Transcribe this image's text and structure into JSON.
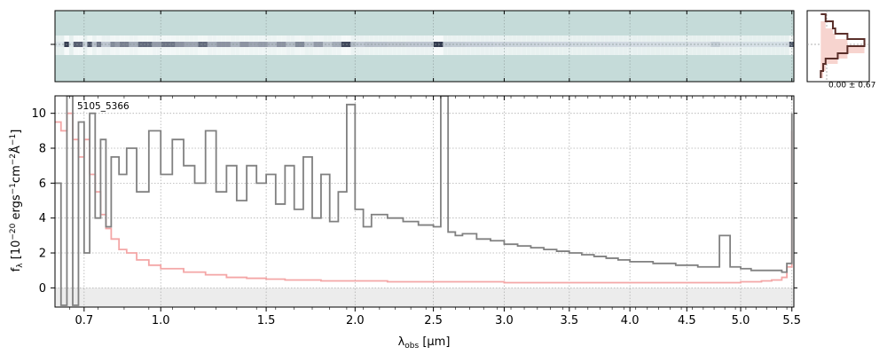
{
  "chart_data": {
    "type": "line",
    "object_label": "5105_5366",
    "ylabel": "f_λ [10^-20 ergs^-1 cm^-2 Å^-1]",
    "xlabel": "λ_obs [μm]",
    "xlim": [
      0.6,
      5.52
    ],
    "ylim": [
      -1.1,
      11.0
    ],
    "x_scale": "power-0.5",
    "x_ticks": [
      0.7,
      1.0,
      1.5,
      2.0,
      2.5,
      3.0,
      3.5,
      4.0,
      4.5,
      5.0,
      5.5
    ],
    "x_tick_labels": [
      "0.7",
      "1.0",
      "1.5",
      "2.0",
      "2.5",
      "3.0",
      "3.5",
      "4.0",
      "4.5",
      "5.0",
      "5.5"
    ],
    "y_ticks": [
      0,
      2,
      4,
      6,
      8,
      10
    ],
    "y_tick_labels": [
      "0",
      "2",
      "4",
      "6",
      "8",
      "10"
    ],
    "grid": true,
    "profile_label": "0.00 ± 0.67",
    "colors": {
      "flux": "#808080",
      "error": "#f4a6a6",
      "spectrum_2d_background": "#c5dbd9",
      "profile_fill": "#f7d4cf",
      "profile_line": "#5a2f2a",
      "zero_band": "#ececec"
    },
    "series": [
      {
        "x": [
          0.6,
          0.62,
          0.64,
          0.66,
          0.68,
          0.7,
          0.72,
          0.74,
          0.76,
          0.78,
          0.8,
          0.83,
          0.86,
          0.9,
          0.95,
          1.0,
          1.05,
          1.1,
          1.15,
          1.2,
          1.25,
          1.3,
          1.35,
          1.4,
          1.45,
          1.5,
          1.55,
          1.6,
          1.65,
          1.7,
          1.75,
          1.8,
          1.85,
          1.9,
          1.95,
          2.0,
          2.05,
          2.1,
          2.2,
          2.3,
          2.4,
          2.5,
          2.55,
          2.6,
          2.65,
          2.7,
          2.8,
          2.9,
          3.0,
          3.1,
          3.2,
          3.3,
          3.4,
          3.5,
          3.6,
          3.7,
          3.8,
          3.9,
          4.0,
          4.1,
          4.2,
          4.3,
          4.4,
          4.5,
          4.6,
          4.7,
          4.8,
          4.9,
          5.0,
          5.1,
          5.2,
          5.3,
          5.4,
          5.45,
          5.5
        ],
        "values": [
          6.0,
          -1.0,
          11.0,
          -1.0,
          9.5,
          2.0,
          10.0,
          4.0,
          8.5,
          3.5,
          7.5,
          6.5,
          8.0,
          5.5,
          9.0,
          6.5,
          8.5,
          7.0,
          6.0,
          9.0,
          5.5,
          7.0,
          5.0,
          7.0,
          6.0,
          6.5,
          4.8,
          7.0,
          4.5,
          7.5,
          4.0,
          6.5,
          3.8,
          5.5,
          10.5,
          4.5,
          3.5,
          4.2,
          4.0,
          3.8,
          3.6,
          3.5,
          11.0,
          3.2,
          3.0,
          3.1,
          2.8,
          2.7,
          2.5,
          2.4,
          2.3,
          2.2,
          2.1,
          2.0,
          1.9,
          1.8,
          1.7,
          1.6,
          1.5,
          1.5,
          1.4,
          1.4,
          1.3,
          1.3,
          1.2,
          1.2,
          3.0,
          1.2,
          1.1,
          1.0,
          1.0,
          1.0,
          0.9,
          1.4,
          10.0
        ]
      },
      {
        "x": [
          0.6,
          0.62,
          0.64,
          0.66,
          0.68,
          0.7,
          0.72,
          0.74,
          0.76,
          0.78,
          0.8,
          0.83,
          0.86,
          0.9,
          0.95,
          1.0,
          1.1,
          1.2,
          1.3,
          1.4,
          1.5,
          1.6,
          1.7,
          1.8,
          1.9,
          2.0,
          2.2,
          2.4,
          2.6,
          2.8,
          3.0,
          3.3,
          3.6,
          3.9,
          4.2,
          4.5,
          4.8,
          5.0,
          5.2,
          5.3,
          5.4,
          5.45,
          5.5
        ],
        "values": [
          9.5,
          9.0,
          10.0,
          8.5,
          7.5,
          8.5,
          6.5,
          5.5,
          4.2,
          3.4,
          2.8,
          2.2,
          2.0,
          1.6,
          1.3,
          1.1,
          0.9,
          0.75,
          0.6,
          0.55,
          0.5,
          0.45,
          0.45,
          0.4,
          0.4,
          0.4,
          0.35,
          0.35,
          0.35,
          0.35,
          0.3,
          0.3,
          0.3,
          0.3,
          0.3,
          0.3,
          0.3,
          0.35,
          0.4,
          0.45,
          0.6,
          1.2,
          9.0
        ]
      }
    ],
    "profile": {
      "y": [
        -0.9,
        -0.7,
        -0.5,
        -0.35,
        -0.2,
        0.0,
        0.2,
        0.35,
        0.5,
        0.7,
        0.9
      ],
      "values": [
        0.0,
        0.05,
        0.1,
        0.35,
        0.55,
        0.9,
        0.55,
        0.3,
        0.25,
        0.1,
        0.0
      ]
    }
  }
}
